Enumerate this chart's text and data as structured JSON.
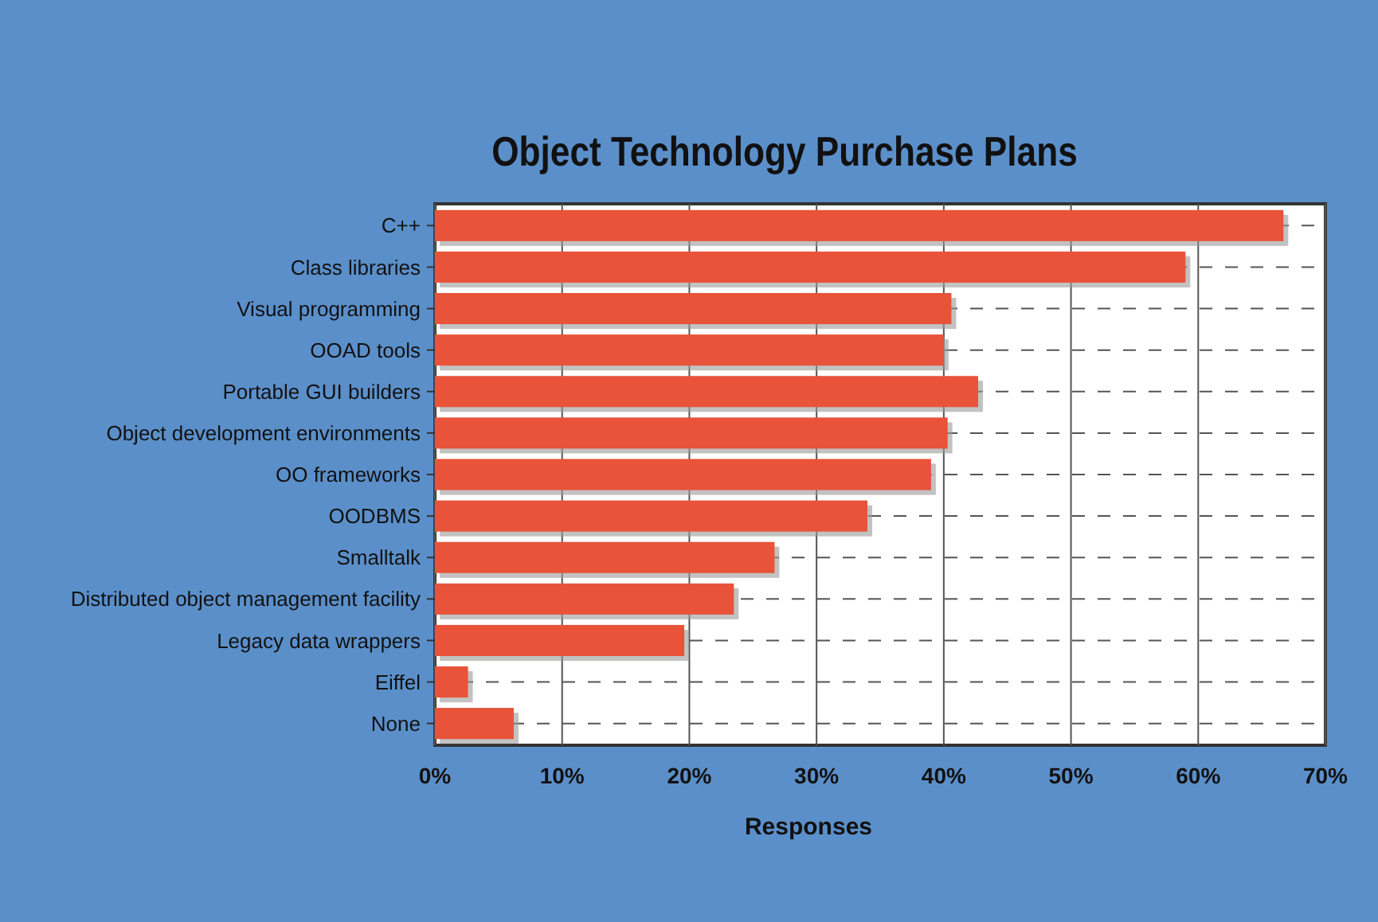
{
  "chart_data": {
    "type": "bar",
    "orientation": "horizontal",
    "title": "Object Technology Purchase Plans",
    "xlabel": "Responses",
    "categories": [
      "C++",
      "Class libraries",
      "Visual programming",
      "OOAD tools",
      "Portable GUI builders",
      "Object development environments",
      "OO frameworks",
      "OODBMS",
      "Smalltalk",
      "Distributed object management facility",
      "Legacy data wrappers",
      "Eiffel",
      "None"
    ],
    "values": [
      66.7,
      59,
      40.6,
      40,
      42.7,
      40.3,
      39,
      34,
      26.7,
      23.5,
      19.6,
      2.6,
      6.2
    ],
    "color": "#e8533a",
    "xlim": [
      0,
      70
    ],
    "xticks": [
      {
        "value": 0,
        "label": "0%"
      },
      {
        "value": 10,
        "label": "10%"
      },
      {
        "value": 20,
        "label": "20%"
      },
      {
        "value": 30,
        "label": "30%"
      },
      {
        "value": 40,
        "label": "40%"
      },
      {
        "value": 50,
        "label": "50%"
      },
      {
        "value": 60,
        "label": "60%"
      },
      {
        "value": 70,
        "label": "70%"
      }
    ],
    "grid": true
  }
}
